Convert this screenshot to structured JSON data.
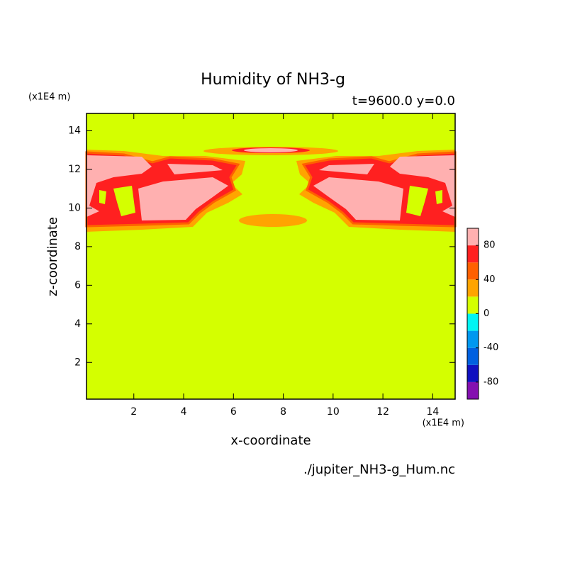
{
  "chart_data": {
    "type": "contour",
    "title": "Humidity of NH3-g",
    "subtitle": "t=9600.0 y=0.0",
    "x_label": "x-coordinate",
    "y_label": "z-coordinate",
    "x_unit": "(x1E4 m)",
    "y_unit": "(x1E4 m)",
    "source_file": "./jupiter_NH3-g_Hum.nc",
    "xlim": [
      0.1,
      14.9
    ],
    "ylim": [
      0.1,
      14.9
    ],
    "xticks": [
      2,
      4,
      6,
      8,
      10,
      12,
      14
    ],
    "yticks": [
      2,
      4,
      6,
      8,
      10,
      12,
      14
    ],
    "colorbar": {
      "levels": [
        -100,
        -80,
        -60,
        -40,
        -20,
        0,
        20,
        40,
        60,
        80,
        100
      ],
      "colors": [
        "#8410b0",
        "#1010c0",
        "#0060e0",
        "#0098f0",
        "#00f4f4",
        "#d4ff00",
        "#ffa400",
        "#ff6000",
        "#ff2020",
        "#ffb0b0"
      ],
      "ticks": [
        -80,
        -40,
        0,
        40,
        80
      ]
    }
  }
}
